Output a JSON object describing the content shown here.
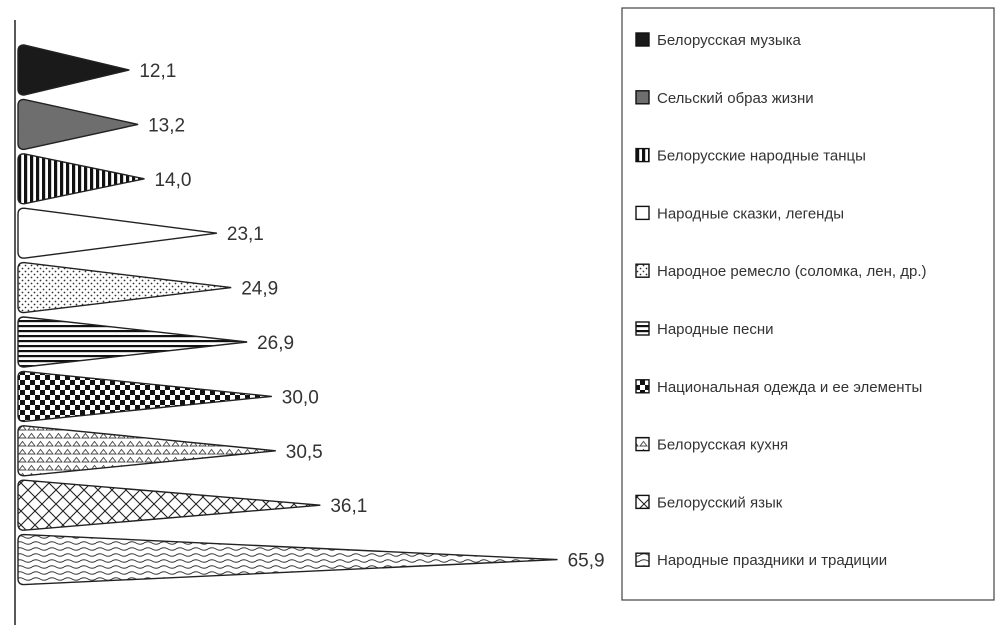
{
  "chart_data": {
    "type": "bar",
    "orientation": "horizontal",
    "bar_shape": "cone",
    "grid": false,
    "legend_position": "right",
    "xlim": [
      0,
      70
    ],
    "categories": [
      "Белорусская музыка",
      "Сельский образ жизни",
      "Белорусские народные танцы",
      "Народные сказки, легенды",
      "Народное ремесло (соломка, лен, др.)",
      "Народные песни",
      "Национальная одежда и ее элементы",
      "Белорусская кухня",
      "Белорусский язык",
      "Народные праздники и традиции"
    ],
    "values": [
      12.1,
      13.2,
      14.0,
      23.1,
      24.9,
      26.9,
      30.0,
      30.5,
      36.1,
      65.9
    ],
    "value_labels": [
      "12,1",
      "13,2",
      "14,0",
      "23,1",
      "24,9",
      "26,9",
      "30,0",
      "30,5",
      "36,1",
      "65,9"
    ],
    "patterns": [
      "solid-dark",
      "solid-gray",
      "vertical-stripes",
      "white",
      "dots",
      "horizontal-lines",
      "checker",
      "triangles",
      "crosshatch",
      "waves"
    ]
  }
}
